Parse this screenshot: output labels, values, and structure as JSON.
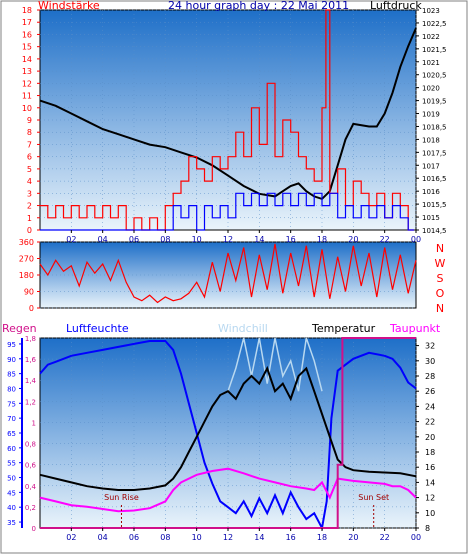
{
  "colors": {
    "plot_top": "#1e6fc8",
    "plot_bottom": "#eaf4fb",
    "wind": "#ff0000",
    "gust": "#0000ff",
    "pressure": "#000000",
    "direction": "#ff0000",
    "humidity": "#0000ff",
    "temperature": "#000000",
    "windchill": "#b8d8f0",
    "dewpoint": "#ff00ff",
    "rain": "#d0108a",
    "axis_title": "#0000aa",
    "tick_red": "#ff0000",
    "tick_blue": "#0000aa"
  },
  "chart_data": [
    {
      "id": "wind-pressure",
      "type": "line",
      "title": "24 hour graph day : 22 Mai 2011",
      "left_axis_label": "Windstärke",
      "right_axis_label": "Luftdruck",
      "left_ticks": [
        "0",
        "1",
        "2",
        "3",
        "4",
        "5",
        "6",
        "7",
        "8",
        "9",
        "10",
        "11",
        "12",
        "13",
        "14",
        "15",
        "16",
        "17",
        "18"
      ],
      "left_range": [
        0,
        18
      ],
      "right_ticks": [
        "1014,5",
        "1015",
        "1015,5",
        "1016",
        "1016,5",
        "1017",
        "1017,5",
        "1018",
        "1018,5",
        "1019",
        "1019,5",
        "1020",
        "1020,5",
        "1021",
        "1021,5",
        "1022",
        "1022,5",
        "1023"
      ],
      "right_range": [
        1014.5,
        1023
      ],
      "x_ticks": [
        "02",
        "04",
        "06",
        "08",
        "10",
        "12",
        "14",
        "16",
        "18",
        "20",
        "22",
        "00"
      ],
      "x_range": [
        0,
        24
      ],
      "series": [
        {
          "key": "pressure",
          "axis": "right",
          "x": [
            0,
            1,
            2,
            3,
            4,
            5,
            6,
            7,
            8,
            9,
            10,
            11,
            12,
            13,
            14,
            15,
            15.5,
            16,
            16.5,
            17,
            17.5,
            18,
            18.5,
            19,
            19.5,
            20,
            21,
            21.5,
            22,
            22.5,
            23,
            23.5,
            24
          ],
          "y": [
            1019.5,
            1019.3,
            1019.0,
            1018.7,
            1018.4,
            1018.2,
            1018.0,
            1017.8,
            1017.7,
            1017.5,
            1017.3,
            1017.0,
            1016.6,
            1016.2,
            1015.9,
            1015.8,
            1016.0,
            1016.2,
            1016.3,
            1016.0,
            1015.8,
            1015.7,
            1016.0,
            1017.0,
            1018.0,
            1018.6,
            1018.5,
            1018.5,
            1019.0,
            1019.8,
            1020.8,
            1021.6,
            1022.3
          ]
        },
        {
          "key": "wind",
          "axis": "left",
          "style": "step",
          "x": [
            0,
            0.5,
            1,
            1.5,
            2,
            2.5,
            3,
            3.5,
            4,
            4.5,
            5,
            5.5,
            6,
            6.5,
            7,
            7.5,
            8,
            8.5,
            9,
            9.5,
            10,
            10.5,
            11,
            11.5,
            12,
            12.5,
            13,
            13.5,
            14,
            14.5,
            15,
            15.5,
            16,
            16.5,
            17,
            17.5,
            18,
            18.25,
            18.5,
            19,
            19.5,
            20,
            20.5,
            21,
            21.5,
            22,
            22.5,
            23,
            23.5
          ],
          "y": [
            2,
            1,
            2,
            1,
            2,
            1,
            2,
            1,
            2,
            1,
            2,
            0,
            1,
            0,
            1,
            0,
            2,
            3,
            4,
            6,
            5,
            4,
            6,
            5,
            6,
            8,
            6,
            10,
            7,
            12,
            6,
            9,
            8,
            6,
            5,
            4,
            10,
            18,
            3,
            5,
            2,
            4,
            3,
            2,
            3,
            1,
            3,
            2,
            0
          ]
        },
        {
          "key": "gust",
          "axis": "left",
          "style": "step",
          "x": [
            0,
            8,
            8.5,
            9,
            9.5,
            10,
            10.5,
            11,
            11.5,
            12,
            12.5,
            13,
            13.5,
            14,
            14.5,
            15,
            15.5,
            16,
            16.5,
            17,
            17.5,
            18,
            18.5,
            19,
            19.5,
            20,
            20.5,
            21,
            21.5,
            22,
            22.5,
            23,
            23.5
          ],
          "y": [
            0,
            0,
            2,
            1,
            2,
            0,
            2,
            1,
            2,
            1,
            3,
            2,
            3,
            2,
            3,
            2,
            3,
            2,
            3,
            2,
            3,
            2,
            3,
            1,
            2,
            1,
            2,
            1,
            2,
            1,
            2,
            1,
            0
          ]
        }
      ]
    },
    {
      "id": "wind-direction",
      "type": "line",
      "left_ticks": [
        "0",
        "90",
        "180",
        "270",
        "360"
      ],
      "left_range": [
        0,
        360
      ],
      "direction_labels": [
        "N",
        "W",
        "S",
        "O",
        "N"
      ],
      "x_range": [
        0,
        24
      ],
      "series": [
        {
          "key": "direction",
          "x": [
            0,
            0.5,
            1,
            1.5,
            2,
            2.5,
            3,
            3.5,
            4,
            4.5,
            5,
            5.5,
            6,
            6.5,
            7,
            7.5,
            8,
            8.5,
            9,
            9.5,
            10,
            10.5,
            11,
            11.5,
            12,
            12.5,
            13,
            13.5,
            14,
            14.5,
            15,
            15.5,
            16,
            16.5,
            17,
            17.5,
            18,
            18.5,
            19,
            19.5,
            20,
            20.5,
            21,
            21.5,
            22,
            22.5,
            23,
            23.5,
            24
          ],
          "y": [
            240,
            180,
            260,
            200,
            230,
            120,
            250,
            190,
            240,
            150,
            260,
            140,
            60,
            40,
            70,
            30,
            60,
            40,
            50,
            80,
            140,
            60,
            250,
            90,
            300,
            150,
            330,
            60,
            290,
            100,
            350,
            80,
            300,
            120,
            340,
            60,
            320,
            50,
            280,
            90,
            340,
            120,
            300,
            60,
            330,
            100,
            290,
            80,
            260
          ]
        }
      ]
    },
    {
      "id": "temp-humidity",
      "type": "line",
      "labels": {
        "rain": "Regen",
        "humidity": "Luftfeuchte",
        "windchill": "Windchill",
        "temperature": "Temperatur",
        "dewpoint": "Taupunkt"
      },
      "rain_ticks": [
        "0",
        "0,2",
        "0,4",
        "0,6",
        "0,8",
        "1",
        "1,2",
        "1,4",
        "1,6",
        "1,8"
      ],
      "rain_range": [
        0,
        1.8
      ],
      "humidity_ticks": [
        "35",
        "40",
        "45",
        "50",
        "55",
        "60",
        "65",
        "70",
        "75",
        "80",
        "85",
        "90",
        "95"
      ],
      "humidity_range": [
        33,
        97
      ],
      "temp_ticks": [
        "8",
        "10",
        "12",
        "14",
        "16",
        "18",
        "20",
        "22",
        "24",
        "26",
        "28",
        "30",
        "32"
      ],
      "temp_range": [
        8,
        33
      ],
      "x_ticks": [
        "02",
        "04",
        "06",
        "08",
        "10",
        "12",
        "14",
        "16",
        "18",
        "20",
        "22",
        "00"
      ],
      "x_range": [
        0,
        24
      ],
      "annotations": [
        {
          "text": "Sun Rise",
          "x": 5.2
        },
        {
          "text": "Sun Set",
          "x": 21.3
        }
      ],
      "series": [
        {
          "key": "humidity",
          "axis": "humidity",
          "x": [
            0,
            0.5,
            1,
            2,
            3,
            4,
            5,
            6,
            7,
            8,
            8.5,
            9,
            9.5,
            10,
            10.5,
            11,
            11.5,
            12,
            12.5,
            13,
            13.5,
            14,
            14.5,
            15,
            15.5,
            16,
            16.5,
            17,
            17.5,
            18,
            18.3,
            18.6,
            19,
            19.5,
            20,
            21,
            22,
            22.5,
            23,
            23.5,
            24
          ],
          "y": [
            85,
            88,
            89,
            91,
            92,
            93,
            94,
            95,
            96,
            96,
            93,
            85,
            75,
            65,
            55,
            48,
            42,
            40,
            38,
            42,
            37,
            43,
            38,
            44,
            38,
            45,
            40,
            36,
            38,
            33,
            42,
            70,
            86,
            88,
            90,
            92,
            91,
            90,
            87,
            82,
            80
          ]
        },
        {
          "key": "temperature",
          "axis": "temp",
          "x": [
            0,
            1,
            2,
            3,
            4,
            5,
            6,
            7,
            8,
            8.5,
            9,
            9.5,
            10,
            10.5,
            11,
            11.5,
            12,
            12.5,
            13,
            13.5,
            14,
            14.5,
            15,
            15.5,
            16,
            16.5,
            17,
            17.5,
            18,
            18.5,
            19,
            19.5,
            20,
            21,
            22,
            23,
            24
          ],
          "y": [
            15.0,
            14.5,
            14.0,
            13.5,
            13.2,
            13.0,
            13.0,
            13.2,
            13.6,
            14.5,
            16.0,
            18.0,
            20.0,
            22.0,
            24.0,
            25.5,
            26.0,
            25.0,
            27.0,
            28.0,
            27.0,
            29.0,
            26.0,
            27.0,
            25.0,
            28.0,
            29.0,
            26.0,
            23.0,
            20.0,
            17.0,
            16.0,
            15.6,
            15.4,
            15.3,
            15.2,
            14.8
          ]
        },
        {
          "key": "windchill",
          "axis": "temp",
          "x": [
            12,
            12.5,
            13,
            13.5,
            14,
            14.5,
            15,
            15.5,
            16,
            16.5,
            17,
            17.5,
            18
          ],
          "y": [
            26,
            29,
            33,
            28,
            33,
            27,
            33,
            28,
            30,
            26,
            33,
            30,
            26
          ]
        },
        {
          "key": "dewpoint",
          "axis": "temp",
          "x": [
            0,
            1,
            2,
            3,
            4,
            5,
            6,
            7,
            8,
            8.5,
            9,
            10,
            11,
            12,
            13,
            14,
            15,
            16,
            17,
            17.5,
            18,
            18.5,
            19,
            20,
            21,
            22,
            22.5,
            23,
            23.5,
            24
          ],
          "y": [
            12.0,
            11.5,
            11.0,
            10.8,
            10.5,
            10.2,
            10.3,
            10.6,
            11.5,
            13.0,
            14.0,
            15.0,
            15.5,
            15.8,
            15.2,
            14.5,
            14.0,
            13.5,
            13.2,
            13.0,
            14.0,
            12.0,
            14.5,
            14.2,
            14.0,
            13.8,
            13.5,
            13.5,
            13.0,
            12.0
          ]
        },
        {
          "key": "rain",
          "axis": "rain",
          "style": "step",
          "x": [
            0,
            18.9,
            19.0,
            19.3,
            24
          ],
          "y": [
            0,
            0,
            0.6,
            1.8,
            1.8
          ]
        }
      ]
    }
  ]
}
